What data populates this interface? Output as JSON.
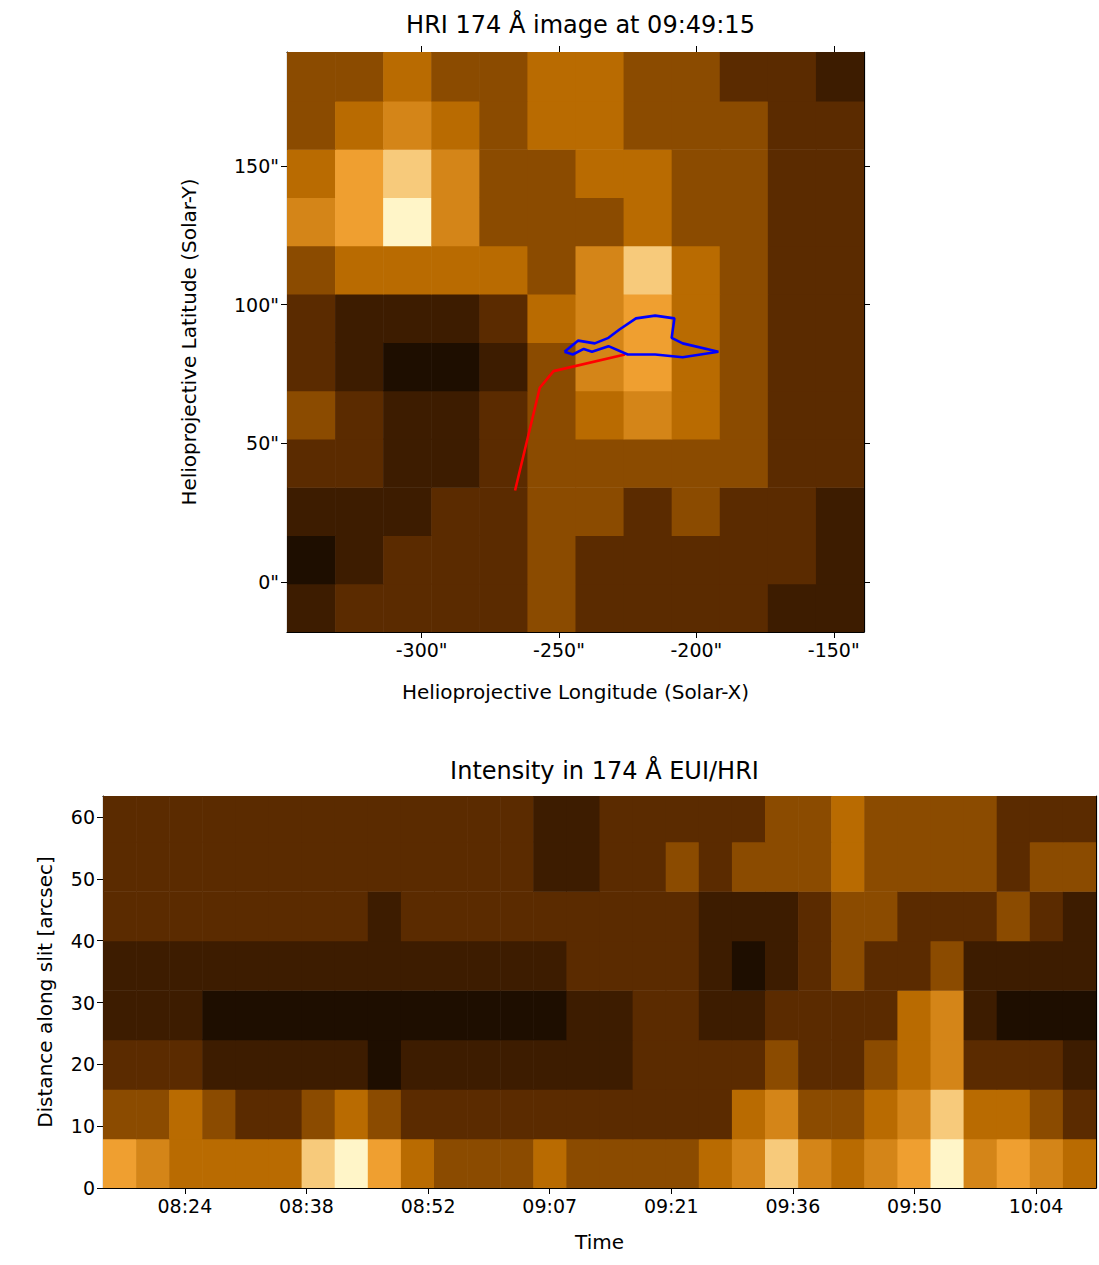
{
  "chart_data": [
    {
      "type": "image",
      "title": "HRI 174 Å image at 09:49:15",
      "x_label": "Helioprojective Longitude (Solar-X)",
      "y_label": "Helioprojective Latitude (Solar-Y)",
      "xlim": [
        -349,
        -139
      ],
      "ylim": [
        -18,
        191
      ],
      "xticks": [
        {
          "value": -300,
          "label": "-300\""
        },
        {
          "value": -250,
          "label": "-250\""
        },
        {
          "value": -200,
          "label": "-200\""
        },
        {
          "value": -150,
          "label": "-150\""
        }
      ],
      "yticks": [
        {
          "value": 0,
          "label": "0\""
        },
        {
          "value": 50,
          "label": "50\""
        },
        {
          "value": 100,
          "label": "100\""
        },
        {
          "value": 150,
          "label": "150\""
        }
      ],
      "x_edges": [
        -349,
        -331.5,
        -314,
        -296.5,
        -279,
        -261.5,
        -244,
        -226.5,
        -209,
        -191.5,
        -174,
        -156.5,
        -139
      ],
      "y_edges": [
        -18,
        -0.6,
        16.8,
        34.2,
        51.6,
        69,
        86.4,
        103.8,
        121.2,
        138.6,
        156,
        173.4,
        191
      ],
      "intensity_range": [
        0,
        9
      ],
      "intensity": [
        [
          2,
          3,
          3,
          3,
          3,
          4,
          3,
          3,
          3,
          3,
          2,
          2
        ],
        [
          1,
          2,
          3,
          3,
          3,
          4,
          3,
          3,
          3,
          3,
          3,
          2
        ],
        [
          2,
          2,
          2,
          3,
          3,
          4,
          4,
          3,
          4,
          3,
          3,
          2
        ],
        [
          3,
          3,
          2,
          2,
          3,
          4,
          4,
          4,
          4,
          4,
          3,
          3
        ],
        [
          4,
          3,
          2,
          2,
          3,
          4,
          5,
          6,
          5,
          4,
          3,
          3
        ],
        [
          3,
          2,
          1,
          1,
          2,
          4,
          6,
          7,
          5,
          4,
          3,
          3
        ],
        [
          3,
          2,
          2,
          2,
          3,
          5,
          6,
          7,
          5,
          4,
          3,
          3
        ],
        [
          4,
          5,
          5,
          5,
          5,
          4,
          6,
          8,
          5,
          4,
          3,
          3
        ],
        [
          6,
          7,
          9,
          6,
          4,
          4,
          4,
          5,
          4,
          4,
          3,
          3
        ],
        [
          5,
          7,
          8,
          6,
          4,
          4,
          5,
          5,
          4,
          4,
          3,
          3
        ],
        [
          4,
          5,
          6,
          5,
          4,
          5,
          5,
          4,
          4,
          4,
          3,
          3
        ],
        [
          4,
          4,
          5,
          4,
          4,
          5,
          5,
          4,
          4,
          3,
          3,
          2
        ]
      ],
      "lines": [
        {
          "type": "line",
          "color": "#ff0000",
          "x": [
            -266,
            -257,
            -252,
            -226
          ],
          "y": [
            33,
            70,
            76,
            82
          ]
        },
        {
          "type": "line",
          "color": "#0000ff",
          "x": [
            -248,
            -243,
            -237,
            -232,
            -228,
            -222,
            -215,
            -208,
            -209,
            -205,
            -192,
            -205,
            -215,
            -225,
            -232,
            -238,
            -241,
            -245,
            -248
          ],
          "y": [
            83,
            87,
            86,
            88,
            91,
            95,
            96,
            95,
            88,
            86,
            83,
            81,
            82,
            82,
            85,
            83,
            84,
            82,
            83
          ]
        }
      ]
    },
    {
      "type": "image",
      "title": "Intensity in 174 Å EUI/HRI",
      "x_label": "Time",
      "y_label": "Distance along slit [arcsec]",
      "xlim": [
        494.3,
        611.9
      ],
      "ylim": [
        0,
        63.4
      ],
      "xticks": [
        {
          "value": 504,
          "label": "08:24"
        },
        {
          "value": 518.4,
          "label": "08:38"
        },
        {
          "value": 532.8,
          "label": "08:52"
        },
        {
          "value": 547.2,
          "label": "09:07"
        },
        {
          "value": 561.6,
          "label": "09:21"
        },
        {
          "value": 576,
          "label": "09:36"
        },
        {
          "value": 590.4,
          "label": "09:50"
        },
        {
          "value": 604.8,
          "label": "10:04"
        }
      ],
      "yticks": [
        0,
        10,
        20,
        30,
        40,
        50,
        60
      ],
      "x_edges": [
        494.3,
        498.22,
        502.14,
        506.06,
        509.98,
        513.9,
        517.82,
        521.74,
        525.66,
        529.58,
        533.5,
        537.42,
        541.34,
        545.26,
        549.18,
        553.1,
        557.02,
        560.94,
        564.86,
        568.78,
        572.7,
        576.62,
        580.54,
        584.46,
        588.38,
        592.3,
        596.22,
        600.14,
        604.06,
        607.98,
        611.9
      ],
      "y_edges": [
        0,
        8,
        16,
        24,
        32,
        40,
        48,
        56,
        63.4
      ],
      "intensity_range": [
        0,
        9
      ],
      "intensity": [
        [
          7,
          6,
          5,
          5,
          5,
          5,
          8,
          9,
          7,
          5,
          4,
          4,
          4,
          5,
          4,
          4,
          4,
          4,
          5,
          6,
          8,
          6,
          5,
          6,
          7,
          9,
          6,
          7,
          6,
          5
        ],
        [
          4,
          4,
          5,
          4,
          3,
          3,
          4,
          5,
          4,
          3,
          3,
          3,
          3,
          3,
          3,
          3,
          3,
          3,
          3,
          5,
          6,
          4,
          4,
          5,
          6,
          8,
          5,
          5,
          4,
          3
        ],
        [
          3,
          3,
          3,
          2,
          2,
          2,
          2,
          2,
          1,
          2,
          2,
          2,
          2,
          2,
          2,
          2,
          3,
          3,
          3,
          3,
          4,
          3,
          3,
          4,
          5,
          6,
          3,
          3,
          3,
          2
        ],
        [
          2,
          2,
          2,
          1,
          1,
          1,
          1,
          1,
          1,
          1,
          1,
          1,
          1,
          1,
          2,
          2,
          3,
          3,
          2,
          2,
          3,
          3,
          3,
          3,
          5,
          6,
          2,
          1,
          1,
          1
        ],
        [
          2,
          2,
          2,
          2,
          2,
          2,
          2,
          2,
          2,
          2,
          2,
          2,
          2,
          2,
          3,
          3,
          3,
          3,
          2,
          1,
          2,
          3,
          4,
          3,
          3,
          4,
          2,
          2,
          2,
          2
        ],
        [
          3,
          3,
          3,
          3,
          3,
          3,
          3,
          3,
          2,
          3,
          3,
          3,
          3,
          3,
          3,
          3,
          3,
          3,
          2,
          2,
          2,
          3,
          4,
          4,
          3,
          3,
          3,
          4,
          3,
          2
        ],
        [
          3,
          3,
          3,
          3,
          3,
          3,
          3,
          3,
          3,
          3,
          3,
          3,
          3,
          2,
          2,
          3,
          3,
          4,
          3,
          4,
          4,
          4,
          5,
          4,
          4,
          4,
          4,
          3,
          4,
          4
        ],
        [
          3,
          3,
          3,
          3,
          3,
          3,
          3,
          3,
          3,
          3,
          3,
          3,
          3,
          2,
          2,
          3,
          3,
          3,
          3,
          3,
          4,
          4,
          5,
          4,
          4,
          4,
          4,
          3,
          3,
          3
        ]
      ]
    }
  ]
}
